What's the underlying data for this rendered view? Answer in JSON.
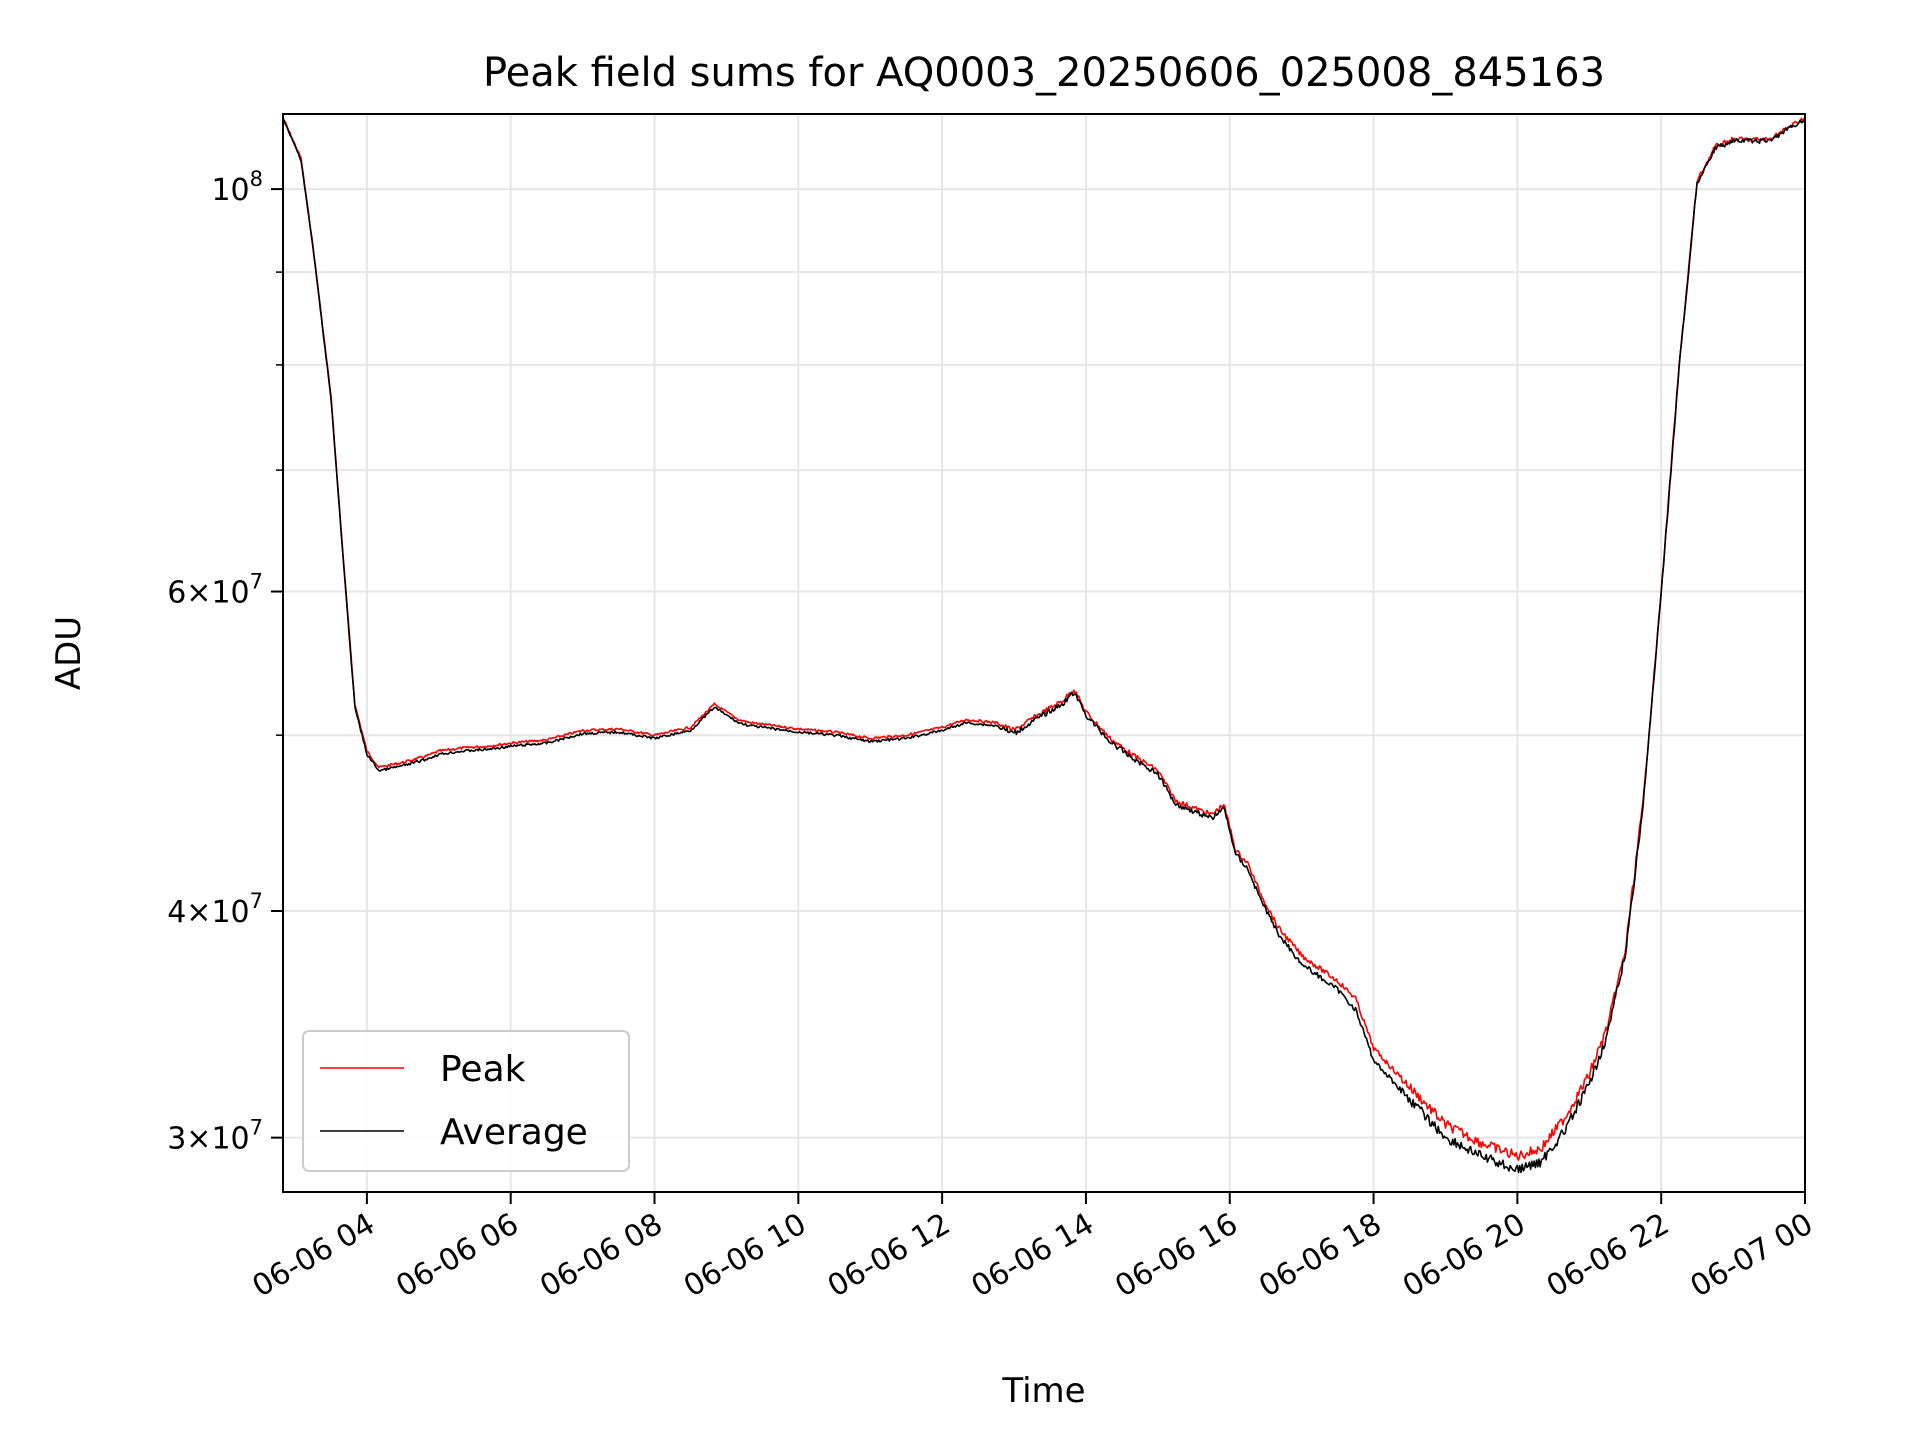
{
  "chart_data": {
    "type": "line",
    "title": "Peak field sums for AQ0003_20250606_025008_845163",
    "xlabel": "Time",
    "ylabel": "ADU",
    "yscale": "log",
    "xlim": [
      "2025-06-06 02:50",
      "2025-06-07 00:00"
    ],
    "ylim": [
      28000000,
      110000000
    ],
    "grid": true,
    "legend_position": "lower-left",
    "x_ticks": [
      {
        "value": "2025-06-06 04:00",
        "label": "06-06 04"
      },
      {
        "value": "2025-06-06 06:00",
        "label": "06-06 06"
      },
      {
        "value": "2025-06-06 08:00",
        "label": "06-06 08"
      },
      {
        "value": "2025-06-06 10:00",
        "label": "06-06 10"
      },
      {
        "value": "2025-06-06 12:00",
        "label": "06-06 12"
      },
      {
        "value": "2025-06-06 14:00",
        "label": "06-06 14"
      },
      {
        "value": "2025-06-06 16:00",
        "label": "06-06 16"
      },
      {
        "value": "2025-06-06 18:00",
        "label": "06-06 18"
      },
      {
        "value": "2025-06-06 20:00",
        "label": "06-06 20"
      },
      {
        "value": "2025-06-06 22:00",
        "label": "06-06 22"
      },
      {
        "value": "2025-06-07 00:00",
        "label": "06-07 00"
      }
    ],
    "y_ticks_major": [
      {
        "value": 30000000,
        "mantissa": "3",
        "exponent": "7"
      },
      {
        "value": 40000000,
        "mantissa": "4",
        "exponent": "7"
      },
      {
        "value": 60000000,
        "mantissa": "6",
        "exponent": "7"
      },
      {
        "value": 100000000,
        "mantissa": "",
        "exponent": "8"
      }
    ],
    "y_ticks_minor": [
      50000000,
      70000000,
      80000000,
      90000000
    ],
    "x": [
      "2025-06-06 02:50",
      "2025-06-06 03:05",
      "2025-06-06 03:15",
      "2025-06-06 03:30",
      "2025-06-06 03:40",
      "2025-06-06 03:50",
      "2025-06-06 04:00",
      "2025-06-06 04:10",
      "2025-06-06 04:30",
      "2025-06-06 04:50",
      "2025-06-06 05:00",
      "2025-06-06 05:20",
      "2025-06-06 05:40",
      "2025-06-06 06:00",
      "2025-06-06 06:30",
      "2025-06-06 07:00",
      "2025-06-06 07:30",
      "2025-06-06 08:00",
      "2025-06-06 08:30",
      "2025-06-06 08:50",
      "2025-06-06 09:10",
      "2025-06-06 09:20",
      "2025-06-06 10:00",
      "2025-06-06 10:30",
      "2025-06-06 11:00",
      "2025-06-06 11:30",
      "2025-06-06 12:00",
      "2025-06-06 12:20",
      "2025-06-06 12:45",
      "2025-06-06 13:00",
      "2025-06-06 13:20",
      "2025-06-06 13:40",
      "2025-06-06 13:50",
      "2025-06-06 14:00",
      "2025-06-06 14:20",
      "2025-06-06 14:40",
      "2025-06-06 15:00",
      "2025-06-06 15:15",
      "2025-06-06 15:45",
      "2025-06-06 15:55",
      "2025-06-06 16:05",
      "2025-06-06 16:15",
      "2025-06-06 16:25",
      "2025-06-06 16:40",
      "2025-06-06 17:00",
      "2025-06-06 17:30",
      "2025-06-06 17:45",
      "2025-06-06 18:00",
      "2025-06-06 18:30",
      "2025-06-06 19:00",
      "2025-06-06 19:30",
      "2025-06-06 20:00",
      "2025-06-06 20:20",
      "2025-06-06 20:40",
      "2025-06-06 21:00",
      "2025-06-06 21:15",
      "2025-06-06 21:30",
      "2025-06-06 21:45",
      "2025-06-06 22:00",
      "2025-06-06 22:15",
      "2025-06-06 22:30",
      "2025-06-06 22:45",
      "2025-06-06 23:00",
      "2025-06-06 23:30",
      "2025-06-07 00:00"
    ],
    "series": [
      {
        "name": "Peak",
        "color": "#ff0000",
        "values": [
          109500000,
          104000000,
          93000000,
          77000000,
          63000000,
          52000000,
          49000000,
          48000000,
          48300000,
          48700000,
          49000000,
          49200000,
          49300000,
          49500000,
          49700000,
          50300000,
          50400000,
          50000000,
          50500000,
          52000000,
          51000000,
          50800000,
          50400000,
          50200000,
          49800000,
          50000000,
          50500000,
          51000000,
          50800000,
          50300000,
          51300000,
          52200000,
          53000000,
          51500000,
          49800000,
          48700000,
          47800000,
          46000000,
          45200000,
          45800000,
          43200000,
          42500000,
          41000000,
          39200000,
          37800000,
          36600000,
          35800000,
          33600000,
          32000000,
          30500000,
          29800000,
          29300000,
          29600000,
          30800000,
          32500000,
          34500000,
          38000000,
          46000000,
          60000000,
          80000000,
          101000000,
          105500000,
          106500000,
          106500000,
          109500000
        ]
      },
      {
        "name": "Average",
        "color": "#000000",
        "values": [
          109300000,
          103800000,
          92800000,
          76800000,
          62800000,
          51800000,
          48800000,
          47800000,
          48100000,
          48500000,
          48800000,
          49000000,
          49100000,
          49300000,
          49500000,
          50100000,
          50200000,
          49800000,
          50300000,
          51800000,
          50800000,
          50600000,
          50200000,
          50000000,
          49600000,
          49800000,
          50300000,
          50800000,
          50600000,
          50100000,
          51100000,
          52000000,
          52800000,
          51300000,
          49600000,
          48500000,
          47600000,
          45800000,
          45000000,
          45600000,
          43000000,
          42200000,
          40700000,
          38900000,
          37400000,
          36200000,
          35300000,
          33100000,
          31500000,
          30000000,
          29300000,
          28800000,
          29100000,
          30300000,
          32100000,
          34200000,
          37800000,
          45800000,
          59800000,
          79800000,
          100800000,
          105300000,
          106300000,
          106300000,
          109300000
        ]
      }
    ]
  }
}
